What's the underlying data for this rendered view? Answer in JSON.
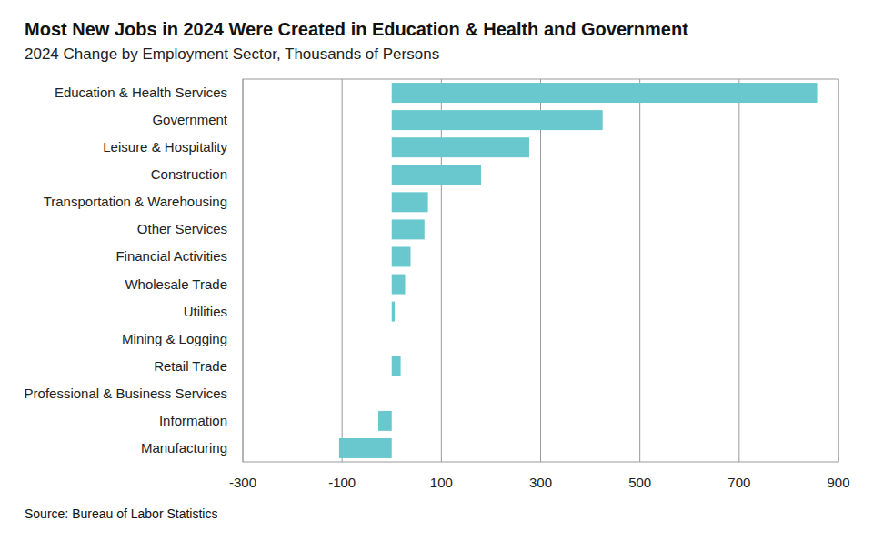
{
  "chart_data": {
    "type": "bar",
    "orientation": "horizontal",
    "title": "Most New Jobs in 2024 Were Created in Education & Health and Government",
    "subtitle": "2024 Change by Employment Sector, Thousands of Persons",
    "source": "Source: Bureau of Labor Statistics",
    "categories": [
      "Education & Health Services",
      "Government",
      "Leisure & Hospitality",
      "Construction",
      "Transportation & Warehousing",
      "Other Services",
      "Financial Activities",
      "Wholesale Trade",
      "Utilities",
      "Mining & Logging",
      "Retail Trade",
      "Professional & Business Services",
      "Information",
      "Manufacturing"
    ],
    "values": [
      857,
      425,
      277,
      180,
      73,
      66,
      38,
      27,
      6,
      0,
      18,
      0,
      -27,
      -106
    ],
    "color": "#68c8cd",
    "xlim": [
      -300,
      900
    ],
    "xticks": [
      -300,
      -100,
      100,
      300,
      500,
      700,
      900
    ],
    "grid": true
  }
}
